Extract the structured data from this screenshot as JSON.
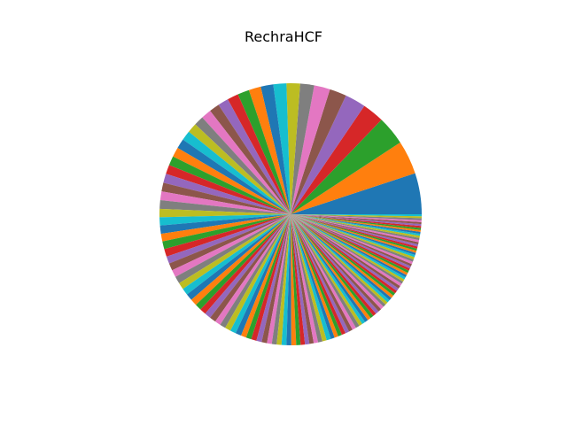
{
  "chart_data": {
    "type": "pie",
    "title": "RechraHCF",
    "start_angle_deg": 0,
    "direction": "counterclockwise",
    "legend": "none",
    "colors": [
      "#1f77b4",
      "#ff7f0e",
      "#2ca02c",
      "#d62728",
      "#9467bd",
      "#8c564b",
      "#e377c2",
      "#7f7f7f",
      "#bcbd22",
      "#17becf"
    ],
    "values": [
      8.5,
      7.0,
      6.0,
      4.5,
      4.3,
      3.5,
      3.3,
      2.9,
      2.8,
      2.7,
      2.6,
      2.5,
      2.4,
      2.3,
      2.2,
      2.1,
      2.1,
      2.0,
      2.0,
      2.0,
      2.0,
      2.0,
      1.9,
      1.9,
      1.9,
      1.8,
      1.8,
      1.8,
      1.7,
      1.7,
      1.7,
      1.6,
      1.6,
      1.6,
      1.5,
      1.5,
      1.5,
      1.5,
      1.4,
      1.4,
      1.4,
      1.4,
      1.3,
      1.3,
      1.3,
      1.3,
      1.2,
      1.2,
      1.2,
      1.2,
      1.2,
      1.1,
      1.1,
      1.1,
      1.1,
      1.1,
      1.0,
      1.0,
      1.0,
      1.0,
      1.0,
      1.0,
      0.9,
      0.9,
      0.9,
      0.9,
      0.9,
      0.9,
      0.9,
      0.9,
      0.8,
      0.8,
      0.8,
      0.8,
      0.8,
      0.8,
      0.8,
      0.8,
      0.7,
      0.7,
      0.7,
      0.7,
      0.7,
      0.7,
      0.7,
      0.7,
      0.7,
      0.6,
      0.6,
      0.6,
      0.6,
      0.6,
      0.6,
      0.6,
      0.6,
      0.6,
      0.6,
      0.5,
      0.5,
      0.5,
      0.5,
      0.5,
      0.5,
      0.5,
      0.5,
      0.5,
      0.5,
      0.5,
      0.5,
      0.45,
      0.45,
      0.45,
      0.45,
      0.45,
      0.45,
      0.45,
      0.45,
      0.45,
      0.45,
      0.4,
      0.4,
      0.4,
      0.4,
      0.4,
      0.4,
      0.4,
      0.4,
      0.4,
      0.4,
      0.4
    ]
  }
}
